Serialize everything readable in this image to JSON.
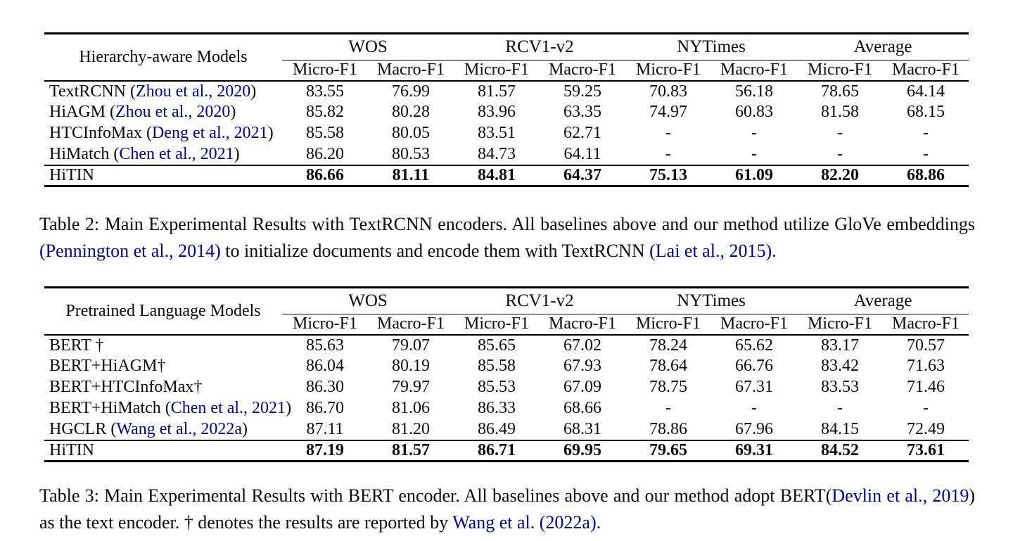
{
  "page": {
    "background": "#ffffff",
    "text_color": "#0a0a0a",
    "link_color": "#000099"
  },
  "tables": [
    {
      "name": "table-2-textrcnn-results",
      "corner_label": "Hierarchy-aware Models",
      "groups": [
        "WOS",
        "RCV1-v2",
        "NYTimes",
        "Average"
      ],
      "metric_headers": [
        "Micro-F1",
        "Macro-F1",
        "Micro-F1",
        "Macro-F1",
        "Micro-F1",
        "Macro-F1",
        "Micro-F1",
        "Macro-F1"
      ],
      "rows": [
        {
          "label": "TextRCNN",
          "cite": "Zhou et al., 2020",
          "values": [
            "83.55",
            "76.99",
            "81.57",
            "59.25",
            "70.83",
            "56.18",
            "78.65",
            "64.14"
          ],
          "bold_values": false,
          "top_rule": false
        },
        {
          "label": "HiAGM",
          "cite": "Zhou et al., 2020",
          "values": [
            "85.82",
            "80.28",
            "83.96",
            "63.35",
            "74.97",
            "60.83",
            "81.58",
            "68.15"
          ],
          "bold_values": false,
          "top_rule": false
        },
        {
          "label": "HTCInfoMax",
          "cite": "Deng et al., 2021",
          "values": [
            "85.58",
            "80.05",
            "83.51",
            "62.71",
            "-",
            "-",
            "-",
            "-"
          ],
          "bold_values": false,
          "top_rule": false
        },
        {
          "label": "HiMatch",
          "cite": "Chen et al., 2021",
          "values": [
            "86.20",
            "80.53",
            "84.73",
            "64.11",
            "-",
            "-",
            "-",
            "-"
          ],
          "bold_values": false,
          "top_rule": false
        },
        {
          "label": "HiTIN",
          "cite": null,
          "values": [
            "86.66",
            "81.11",
            "84.81",
            "64.37",
            "75.13",
            "61.09",
            "82.20",
            "68.86"
          ],
          "bold_values": true,
          "top_rule": true
        }
      ],
      "caption_segments": [
        {
          "t": "Table 2: Main Experimental Results with TextRCNN encoders. All baselines above and our method utilize GloVe embeddings ",
          "link": false
        },
        {
          "t": "(Pennington et al., 2014)",
          "link": true
        },
        {
          "t": " to initialize documents and encode them with TextRCNN ",
          "link": false
        },
        {
          "t": "(Lai et al., 2015)",
          "link": true
        },
        {
          "t": ".",
          "link": false
        }
      ]
    },
    {
      "name": "table-3-bert-results",
      "corner_label": "Pretrained Language Models",
      "groups": [
        "WOS",
        "RCV1-v2",
        "NYTimes",
        "Average"
      ],
      "metric_headers": [
        "Micro-F1",
        "Macro-F1",
        "Micro-F1",
        "Macro-F1",
        "Micro-F1",
        "Macro-F1",
        "Micro-F1",
        "Macro-F1"
      ],
      "rows": [
        {
          "label": "BERT †",
          "cite": null,
          "values": [
            "85.63",
            "79.07",
            "85.65",
            "67.02",
            "78.24",
            "65.62",
            "83.17",
            "70.57"
          ],
          "bold_values": false,
          "top_rule": false
        },
        {
          "label": "BERT+HiAGM†",
          "cite": null,
          "values": [
            "86.04",
            "80.19",
            "85.58",
            "67.93",
            "78.64",
            "66.76",
            "83.42",
            "71.63"
          ],
          "bold_values": false,
          "top_rule": false
        },
        {
          "label": "BERT+HTCInfoMax†",
          "cite": null,
          "values": [
            "86.30",
            "79.97",
            "85.53",
            "67.09",
            "78.75",
            "67.31",
            "83.53",
            "71.46"
          ],
          "bold_values": false,
          "top_rule": false
        },
        {
          "label": "BERT+HiMatch",
          "cite": "Chen et al., 2021",
          "values": [
            "86.70",
            "81.06",
            "86.33",
            "68.66",
            "-",
            "-",
            "-",
            "-"
          ],
          "bold_values": false,
          "top_rule": false
        },
        {
          "label": "HGCLR",
          "cite": "Wang et al., 2022a",
          "values": [
            "87.11",
            "81.20",
            "86.49",
            "68.31",
            "78.86",
            "67.96",
            "84.15",
            "72.49"
          ],
          "bold_values": false,
          "top_rule": false
        },
        {
          "label": "HiTIN",
          "cite": null,
          "values": [
            "87.19",
            "81.57",
            "86.71",
            "69.95",
            "79.65",
            "69.31",
            "84.52",
            "73.61"
          ],
          "bold_values": true,
          "top_rule": true
        }
      ],
      "caption_segments": [
        {
          "t": "Table 3: Main Experimental Results with BERT encoder. All baselines above and our method adopt BERT(",
          "link": false
        },
        {
          "t": "Devlin et al., 2019",
          "link": true
        },
        {
          "t": ") as the text encoder. † denotes the results are reported by ",
          "link": false
        },
        {
          "t": "Wang et al.",
          "link": true
        },
        {
          "t": " ",
          "link": false
        },
        {
          "t": "(2022a)",
          "link": true
        },
        {
          "t": ".",
          "link": false
        }
      ]
    }
  ]
}
